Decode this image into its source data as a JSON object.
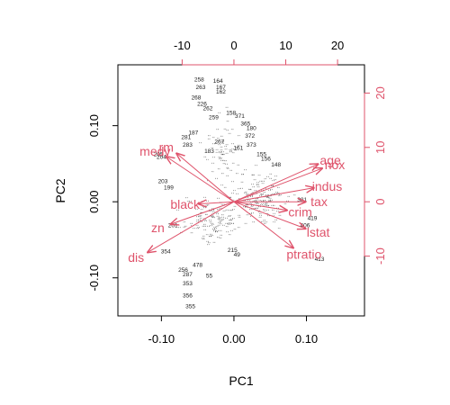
{
  "chart_data": {
    "type": "scatter",
    "subtype": "biplot",
    "title": "",
    "xlabel": "PC1",
    "ylabel": "PC2",
    "xlim": [
      -0.16,
      0.18
    ],
    "ylim": [
      -0.15,
      0.18
    ],
    "xticks": [
      -0.1,
      0.0,
      0.1
    ],
    "yticks": [
      -0.1,
      0.0,
      0.1
    ],
    "xtick_labels": [
      "-0.10",
      "0.00",
      "0.10"
    ],
    "ytick_labels": [
      "-0.10",
      "0.00",
      "0.10"
    ],
    "top_axis": {
      "lim": [
        -22.4,
        25.2
      ],
      "ticks": [
        -10,
        0,
        10,
        20
      ],
      "tick_labels": [
        "-10",
        "0",
        "10",
        "20"
      ]
    },
    "right_axis": {
      "lim": [
        -21,
        25.2
      ],
      "ticks": [
        -10,
        0,
        10,
        20
      ],
      "tick_labels": [
        "-10",
        "0",
        "10",
        "20"
      ]
    },
    "grid": false,
    "colors": {
      "observations": "#222222",
      "variables": "#df536b"
    },
    "variables": [
      {
        "name": "age",
        "x": 16.4,
        "y": 7.0
      },
      {
        "name": "nox",
        "x": 17.2,
        "y": 6.2
      },
      {
        "name": "indus",
        "x": 15.6,
        "y": 2.6
      },
      {
        "name": "tax",
        "x": 14.0,
        "y": 0.0
      },
      {
        "name": "crim",
        "x": 10.4,
        "y": -1.6
      },
      {
        "name": "lstat",
        "x": 14.0,
        "y": -5.0
      },
      {
        "name": "ptratio",
        "x": 11.6,
        "y": -8.6
      },
      {
        "name": "rm",
        "x": -11.2,
        "y": 9.0
      },
      {
        "name": "medv",
        "x": -13.2,
        "y": 8.4
      },
      {
        "name": "black",
        "x": -7.0,
        "y": -0.4
      },
      {
        "name": "zn",
        "x": -12.4,
        "y": -4.2
      },
      {
        "name": "dis",
        "x": -16.8,
        "y": -9.4
      }
    ],
    "labeled_points": [
      {
        "label": "258",
        "x": -0.048,
        "y": 0.16
      },
      {
        "label": "164",
        "x": -0.022,
        "y": 0.158
      },
      {
        "label": "263",
        "x": -0.046,
        "y": 0.15
      },
      {
        "label": "167",
        "x": -0.018,
        "y": 0.15
      },
      {
        "label": "162",
        "x": -0.018,
        "y": 0.144
      },
      {
        "label": "268",
        "x": -0.052,
        "y": 0.136
      },
      {
        "label": "226",
        "x": -0.044,
        "y": 0.128
      },
      {
        "label": "262",
        "x": -0.036,
        "y": 0.122
      },
      {
        "label": "158",
        "x": -0.004,
        "y": 0.116
      },
      {
        "label": "371",
        "x": 0.008,
        "y": 0.112
      },
      {
        "label": "259",
        "x": -0.028,
        "y": 0.11
      },
      {
        "label": "365",
        "x": 0.016,
        "y": 0.102
      },
      {
        "label": "180",
        "x": 0.024,
        "y": 0.096
      },
      {
        "label": "187",
        "x": -0.056,
        "y": 0.09
      },
      {
        "label": "372",
        "x": 0.022,
        "y": 0.086
      },
      {
        "label": "281",
        "x": -0.066,
        "y": 0.084
      },
      {
        "label": "267",
        "x": -0.02,
        "y": 0.078
      },
      {
        "label": "283",
        "x": -0.064,
        "y": 0.074
      },
      {
        "label": "373",
        "x": 0.024,
        "y": 0.074
      },
      {
        "label": "183",
        "x": -0.034,
        "y": 0.066
      },
      {
        "label": "161",
        "x": 0.006,
        "y": 0.07
      },
      {
        "label": "205",
        "x": -0.104,
        "y": 0.062
      },
      {
        "label": "204",
        "x": -0.1,
        "y": 0.058
      },
      {
        "label": "155",
        "x": 0.038,
        "y": 0.062
      },
      {
        "label": "156",
        "x": 0.044,
        "y": 0.056
      },
      {
        "label": "148",
        "x": 0.058,
        "y": 0.048
      },
      {
        "label": "203",
        "x": -0.098,
        "y": 0.026
      },
      {
        "label": "199",
        "x": -0.09,
        "y": 0.018
      },
      {
        "label": "381",
        "x": 0.094,
        "y": 0.002
      },
      {
        "label": "419",
        "x": 0.108,
        "y": -0.022
      },
      {
        "label": "406",
        "x": 0.098,
        "y": -0.032
      },
      {
        "label": "413",
        "x": 0.118,
        "y": -0.076
      },
      {
        "label": "215",
        "x": -0.002,
        "y": -0.064
      },
      {
        "label": "49",
        "x": 0.004,
        "y": -0.07
      },
      {
        "label": "354",
        "x": -0.094,
        "y": -0.066
      },
      {
        "label": "256",
        "x": -0.07,
        "y": -0.09
      },
      {
        "label": "287",
        "x": -0.064,
        "y": -0.096
      },
      {
        "label": "55",
        "x": -0.034,
        "y": -0.098
      },
      {
        "label": "353",
        "x": -0.064,
        "y": -0.108
      },
      {
        "label": "356",
        "x": -0.064,
        "y": -0.124
      },
      {
        "label": "355",
        "x": -0.06,
        "y": -0.138
      },
      {
        "label": "478",
        "x": -0.05,
        "y": -0.084
      },
      {
        "label": "201",
        "x": -0.084,
        "y": -0.032
      }
    ]
  }
}
